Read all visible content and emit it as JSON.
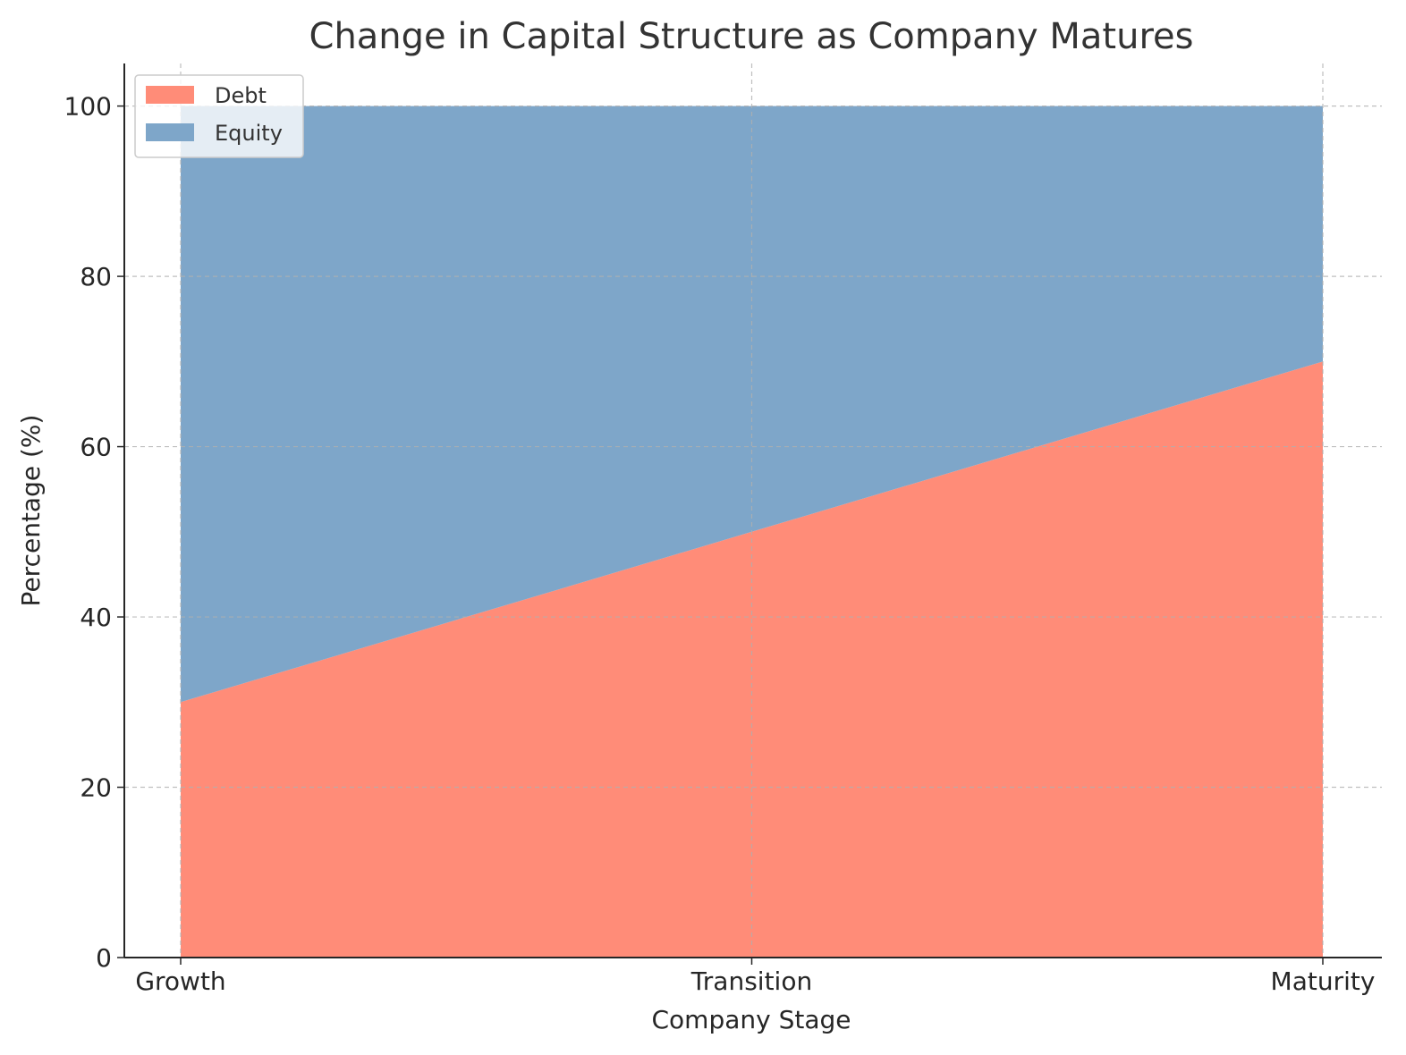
{
  "chart_data": {
    "type": "area",
    "stacked": true,
    "title": "Change in Capital Structure as Company Matures",
    "xlabel": "Company Stage",
    "ylabel": "Percentage (%)",
    "categories": [
      "Growth",
      "Transition",
      "Maturity"
    ],
    "ylim": [
      0,
      105
    ],
    "yticks": [
      0,
      20,
      40,
      60,
      80,
      100
    ],
    "grid": true,
    "legend_position": "top-left",
    "series": [
      {
        "name": "Debt",
        "values": [
          30,
          50,
          70
        ],
        "color": "#ff8c78"
      },
      {
        "name": "Equity",
        "values": [
          70,
          50,
          30
        ],
        "color": "#7ea6c9"
      }
    ]
  }
}
